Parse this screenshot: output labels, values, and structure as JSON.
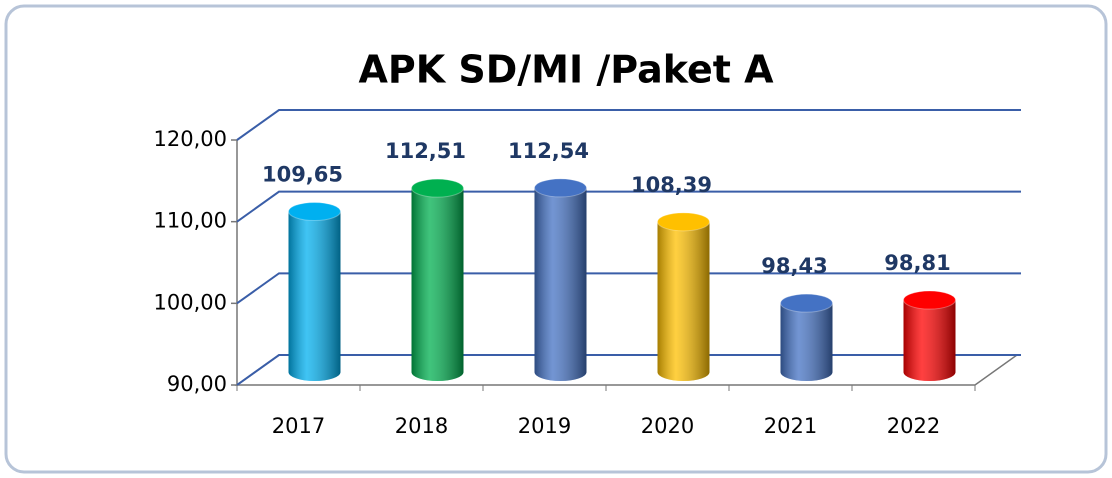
{
  "chart_data": {
    "type": "bar3d",
    "title": "APK SD/MI /Paket A",
    "categories": [
      "2017",
      "2018",
      "2019",
      "2020",
      "2021",
      "2022"
    ],
    "values": [
      109.65,
      112.51,
      112.54,
      108.39,
      98.43,
      98.81
    ],
    "value_labels": [
      "109,65",
      "112,51",
      "112,54",
      "108,39",
      "98,43",
      "98,81"
    ],
    "colors": [
      "#00b0f0",
      "#00b050",
      "#4472c4",
      "#ffc000",
      "#4472c4",
      "#ff0000"
    ],
    "ylim": [
      90,
      120
    ],
    "yticks": [
      {
        "value": 90,
        "label": "90,00"
      },
      {
        "value": 100,
        "label": "100,00"
      },
      {
        "value": 110,
        "label": "110,00"
      },
      {
        "value": 120,
        "label": "120,00"
      }
    ],
    "grid": true
  }
}
